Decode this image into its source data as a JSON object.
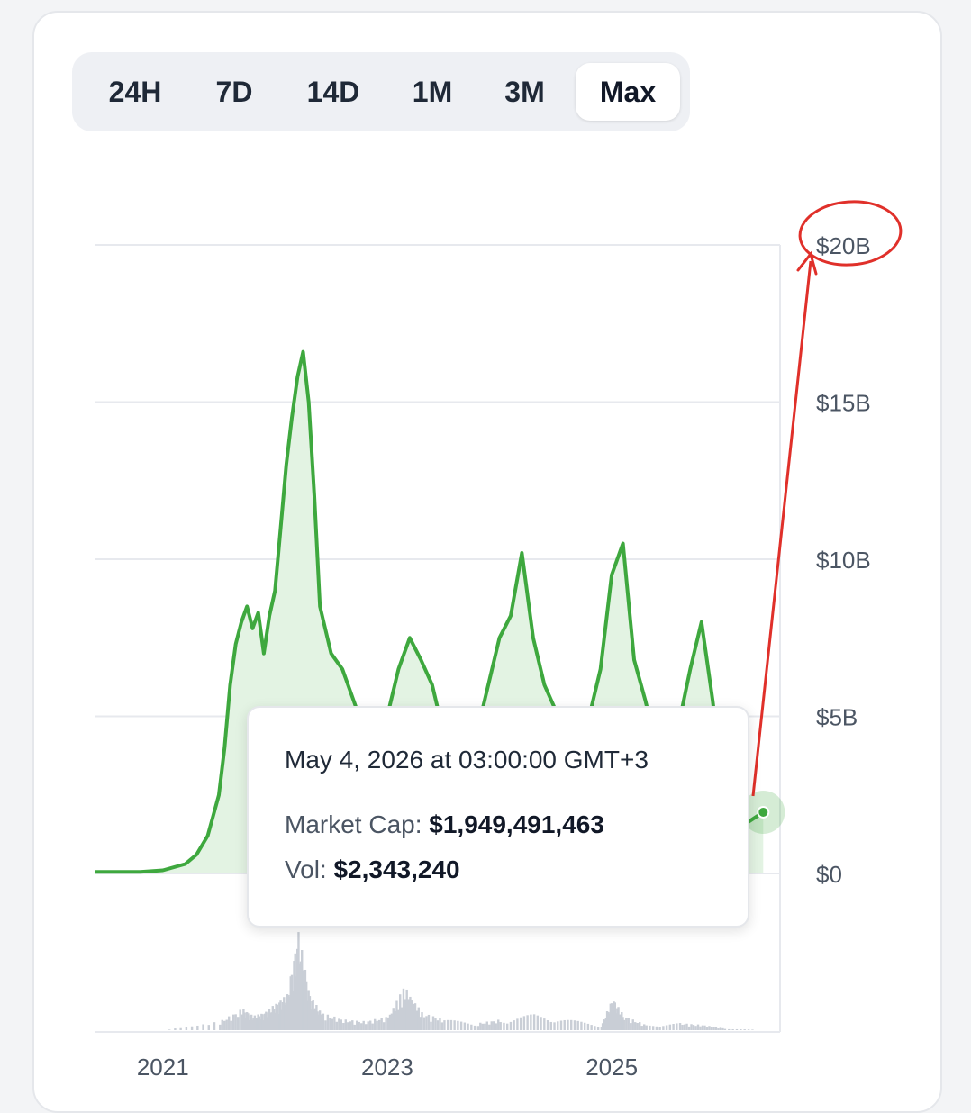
{
  "tabs": [
    {
      "label": "24H",
      "active": false
    },
    {
      "label": "7D",
      "active": false
    },
    {
      "label": "14D",
      "active": false
    },
    {
      "label": "1M",
      "active": false
    },
    {
      "label": "3M",
      "active": false
    },
    {
      "label": "Max",
      "active": true
    }
  ],
  "tooltip": {
    "date": "May 4, 2026 at 03:00:00 GMT+3",
    "market_cap_label": "Market Cap:",
    "market_cap_value": "$1,949,491,463",
    "vol_label": "Vol:",
    "vol_value": "$2,343,240"
  },
  "colors": {
    "line": "#3ea83e",
    "area": "#e3f3e3",
    "volume": "#c9ced6",
    "annotation": "#e0302a",
    "grid": "#e7e9ee"
  },
  "chart_data": {
    "type": "area",
    "x_tick_labels": [
      "2021",
      "2023",
      "2025"
    ],
    "y_tick_labels": [
      "$0",
      "$5B",
      "$10B",
      "$15B",
      "$20B"
    ],
    "y_ticks": [
      0,
      5,
      10,
      15,
      20
    ],
    "ylim": [
      0,
      20
    ],
    "xlim": [
      2020.4,
      2026.5
    ],
    "y_unit": "billion USD",
    "grid": true,
    "series": [
      {
        "metric": "market_cap",
        "x": [
          2020.4,
          2020.8,
          2021.0,
          2021.2,
          2021.3,
          2021.4,
          2021.5,
          2021.55,
          2021.6,
          2021.65,
          2021.7,
          2021.75,
          2021.8,
          2021.85,
          2021.9,
          2021.95,
          2022.0,
          2022.05,
          2022.1,
          2022.15,
          2022.2,
          2022.25,
          2022.3,
          2022.35,
          2022.4,
          2022.5,
          2022.6,
          2022.7,
          2022.8,
          2022.9,
          2023.0,
          2023.1,
          2023.2,
          2023.3,
          2023.4,
          2023.5,
          2023.6,
          2023.7,
          2023.8,
          2023.9,
          2024.0,
          2024.1,
          2024.2,
          2024.3,
          2024.4,
          2024.5,
          2024.6,
          2024.7,
          2024.8,
          2024.9,
          2025.0,
          2025.1,
          2025.2,
          2025.3,
          2025.4,
          2025.5,
          2025.6,
          2025.7,
          2025.8,
          2025.9,
          2026.0,
          2026.1,
          2026.2,
          2026.35
        ],
        "y": [
          0.05,
          0.05,
          0.1,
          0.3,
          0.6,
          1.2,
          2.5,
          4.0,
          6.0,
          7.3,
          8.0,
          8.5,
          7.8,
          8.3,
          7.0,
          8.2,
          9.0,
          11.0,
          13.0,
          14.5,
          15.8,
          16.6,
          15.0,
          12.0,
          8.5,
          7.0,
          6.5,
          5.5,
          4.5,
          4.2,
          5.0,
          6.5,
          7.5,
          6.8,
          6.0,
          4.5,
          4.2,
          4.0,
          4.5,
          6.0,
          7.5,
          8.2,
          10.2,
          7.5,
          6.0,
          5.2,
          4.2,
          4.6,
          5.0,
          6.5,
          9.5,
          10.5,
          6.8,
          5.5,
          4.0,
          4.2,
          4.8,
          6.5,
          8.0,
          5.5,
          2.5,
          1.3,
          1.6,
          1.95
        ]
      },
      {
        "metric": "volume",
        "x": [
          2020.4,
          2021.0,
          2021.5,
          2021.7,
          2021.8,
          2021.9,
          2022.0,
          2022.1,
          2022.2,
          2022.3,
          2022.4,
          2022.6,
          2022.8,
          2023.0,
          2023.15,
          2023.3,
          2023.5,
          2023.8,
          2024.0,
          2024.3,
          2024.6,
          2024.9,
          2025.0,
          2025.1,
          2025.3,
          2025.6,
          2025.8,
          2026.0,
          2026.35
        ],
        "y": [
          0,
          0,
          0.5,
          1.2,
          0.8,
          1.0,
          1.5,
          2.0,
          5.5,
          2.0,
          1.0,
          0.6,
          0.5,
          0.8,
          2.5,
          1.0,
          0.6,
          0.4,
          0.6,
          0.9,
          0.6,
          0.3,
          1.8,
          0.8,
          0.3,
          0.4,
          0.3,
          0.1,
          0.0
        ]
      }
    ]
  }
}
